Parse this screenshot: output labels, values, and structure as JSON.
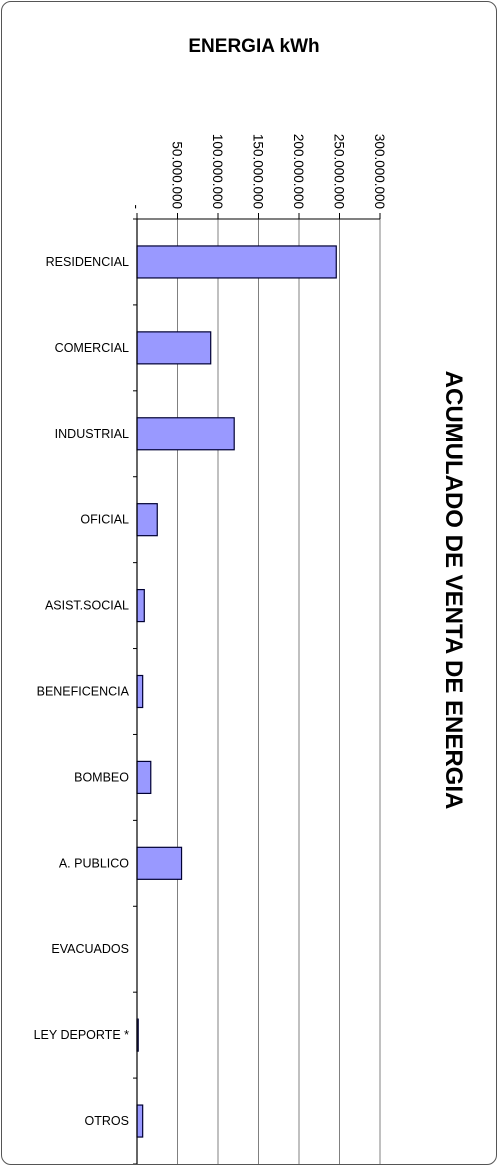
{
  "chart_data": {
    "type": "bar",
    "orientation": "horizontal",
    "title": "ACUMULADO DE VENTA DE ENERGIA",
    "value_axis_label": "ENERGIA kWh",
    "value_ticks": [
      "-",
      "50.000.000",
      "100.000.000",
      "150.000.000",
      "200.000.000",
      "250.000.000",
      "300.000.000"
    ],
    "xlim": [
      0,
      300000000
    ],
    "grid": true,
    "categories": [
      "RESIDENCIAL",
      "COMERCIAL",
      "INDUSTRIAL",
      "OFICIAL",
      "ASIST.SOCIAL",
      "BENEFICENCIA",
      "BOMBEO",
      "A. PUBLICO",
      "EVACUADOS",
      "LEY DEPORTE *",
      "OTROS"
    ],
    "values": [
      246000000,
      91000000,
      120000000,
      25000000,
      9000000,
      7000000,
      17000000,
      55000000,
      0,
      1500000,
      7000000
    ],
    "bar_color": "#9999ff",
    "bar_edge_color": "#000033"
  }
}
